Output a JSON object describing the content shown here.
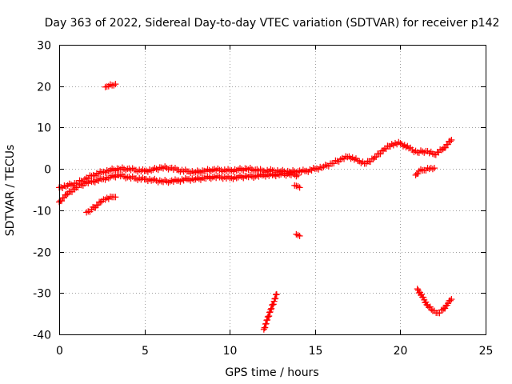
{
  "chart_data": {
    "type": "scatter",
    "title": "Day 363 of 2022, Sidereal Day-to-day VTEC variation (SDTVAR) for receiver p142",
    "xlabel": "GPS time / hours",
    "ylabel": "SDTVAR / TECUs",
    "xlim": [
      0,
      25
    ],
    "ylim": [
      -40,
      30
    ],
    "xticks": [
      0,
      5,
      10,
      15,
      20,
      25
    ],
    "yticks": [
      -40,
      -30,
      -20,
      -10,
      0,
      10,
      20,
      30
    ],
    "xtick_labels": [
      "0",
      "5",
      "10",
      "15",
      "20",
      "25"
    ],
    "ytick_labels": [
      "-40",
      "-30",
      "-20",
      "-10",
      "0",
      "10",
      "20",
      "30"
    ],
    "grid": true,
    "marker": "+",
    "color": "#ff0000",
    "series": [
      {
        "name": "main-trace-upper",
        "x": [
          0.0,
          0.5,
          1.0,
          1.5,
          2.0,
          2.5,
          3.0,
          3.5,
          4.0,
          4.5,
          5.0,
          5.5,
          6.0,
          6.5,
          7.0,
          7.5,
          8.0,
          8.5,
          9.0,
          9.5,
          10.0,
          10.5,
          11.0,
          11.5,
          12.0,
          12.5,
          13.0,
          13.5,
          14.0,
          14.5,
          15.0,
          15.5,
          16.0,
          16.5,
          17.0,
          17.5,
          18.0,
          18.5,
          19.0,
          19.5,
          20.0,
          20.5,
          21.0,
          21.5,
          22.0,
          22.5,
          23.0
        ],
        "y": [
          -4.5,
          -4.0,
          -3.5,
          -2.5,
          -1.5,
          -0.8,
          -0.3,
          0.0,
          0.0,
          -0.3,
          -0.5,
          -0.2,
          0.3,
          0.2,
          -0.3,
          -0.6,
          -0.8,
          -0.5,
          -0.2,
          -0.3,
          -0.4,
          -0.2,
          0.0,
          -0.2,
          -0.5,
          -0.4,
          -0.6,
          -0.7,
          -0.6,
          -0.5,
          0.0,
          0.5,
          1.3,
          2.3,
          3.0,
          2.0,
          1.3,
          2.8,
          4.5,
          6.0,
          6.2,
          5.0,
          4.0,
          4.3,
          3.5,
          4.8,
          7.0
        ]
      },
      {
        "name": "main-trace-lower",
        "x": [
          0.0,
          0.5,
          1.0,
          1.5,
          2.0,
          2.5,
          3.0,
          3.5,
          4.0,
          4.5,
          5.0,
          5.5,
          6.0,
          6.5,
          7.0,
          7.5,
          8.0,
          8.5,
          9.0,
          9.5,
          10.0,
          10.5,
          11.0,
          11.5,
          12.0,
          12.5,
          13.0,
          13.5,
          14.0
        ],
        "y": [
          -8.0,
          -6.0,
          -4.5,
          -3.5,
          -3.0,
          -2.5,
          -2.0,
          -1.5,
          -2.0,
          -2.3,
          -2.5,
          -2.7,
          -3.0,
          -3.0,
          -2.8,
          -2.5,
          -2.5,
          -2.2,
          -2.0,
          -2.0,
          -2.2,
          -2.0,
          -1.8,
          -1.8,
          -1.5,
          -1.5,
          -1.3,
          -1.3,
          -1.5
        ]
      },
      {
        "name": "segment-minus-ten",
        "x": [
          1.6,
          1.9,
          2.2,
          2.5,
          2.8,
          3.1,
          3.3
        ],
        "y": [
          -10.5,
          -9.8,
          -8.8,
          -7.8,
          -7.0,
          -6.8,
          -6.8
        ]
      },
      {
        "name": "segment-plus-twenty",
        "x": [
          2.7,
          2.9,
          3.1,
          3.3
        ],
        "y": [
          19.8,
          20.0,
          20.2,
          20.5
        ]
      },
      {
        "name": "segment-steep-minus-thirty-five",
        "x": [
          12.0,
          12.2,
          12.4,
          12.6,
          12.75
        ],
        "y": [
          -38.8,
          -36.5,
          -34.0,
          -32.0,
          -30.3
        ]
      },
      {
        "name": "segment-near-fourteen",
        "x": [
          13.8,
          14.0,
          14.1
        ],
        "y": [
          -4.0,
          -4.2,
          -4.5
        ]
      },
      {
        "name": "segment-minus-sixteen",
        "x": [
          13.9,
          14.1
        ],
        "y": [
          -15.8,
          -16.2
        ]
      },
      {
        "name": "segment-near-twenty-one",
        "x": [
          20.9,
          21.1,
          21.4,
          21.7,
          22.0
        ],
        "y": [
          -1.5,
          -0.5,
          -0.3,
          0.0,
          0.2
        ]
      },
      {
        "name": "segment-minus-thirty-three",
        "x": [
          21.0,
          21.3,
          21.6,
          21.9,
          22.2,
          22.5,
          22.8,
          23.0
        ],
        "y": [
          -29.0,
          -31.0,
          -33.0,
          -34.3,
          -34.8,
          -34.0,
          -32.5,
          -31.5
        ]
      }
    ]
  }
}
